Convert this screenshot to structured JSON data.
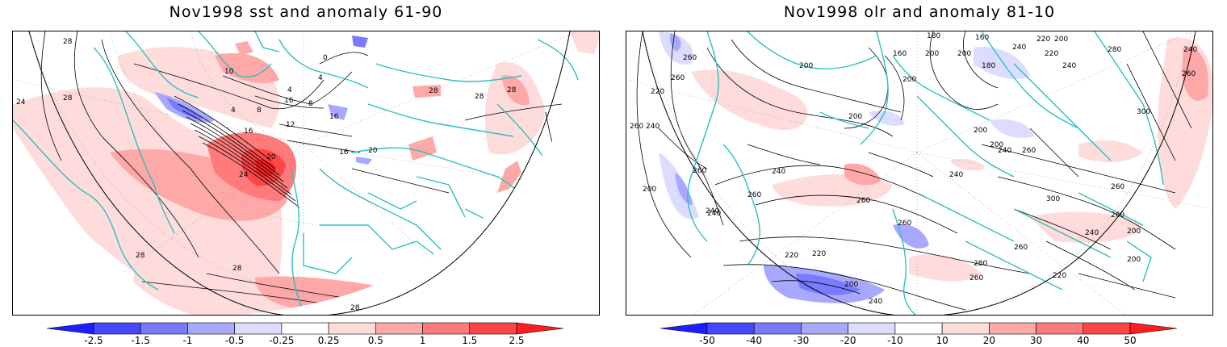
{
  "left_panel": {
    "title": "Nov1998 sst and anomaly 61-90",
    "contour_labels": [
      "28",
      "24",
      "28",
      "10",
      "4",
      "8",
      "4",
      "0",
      "4",
      "8",
      "12",
      "16",
      "20",
      "24",
      "16",
      "20",
      "16",
      "28",
      "28",
      "28",
      "28",
      "28",
      "28",
      "16"
    ],
    "colorbar": {
      "ticks": [
        "-2.5",
        "-1.5",
        "-1",
        "-0.5",
        "-0.25",
        "0.25",
        "0.5",
        "1",
        "1.5",
        "2.5"
      ],
      "colors": [
        "#1e1eff",
        "#4646ff",
        "#7a7aff",
        "#a8a8ff",
        "#dcdcff",
        "#ffffff",
        "#ffdcdc",
        "#ffa8a8",
        "#ff7a7a",
        "#ff4646",
        "#ff1e1e"
      ]
    }
  },
  "right_panel": {
    "title": "Nov1998 olr and anomaly 81-10",
    "contour_labels": [
      "180",
      "160",
      "220",
      "200",
      "240",
      "280",
      "240",
      "200",
      "160",
      "180",
      "220",
      "240",
      "260",
      "200",
      "260",
      "260",
      "200",
      "200",
      "220",
      "200",
      "300",
      "260",
      "240",
      "240",
      "260",
      "260",
      "260",
      "240",
      "200",
      "200",
      "240",
      "260",
      "300",
      "260",
      "260",
      "240",
      "200",
      "220",
      "280",
      "260",
      "220",
      "240",
      "200",
      "220",
      "260",
      "260",
      "240",
      "200",
      "240",
      "200"
    ],
    "colorbar": {
      "ticks": [
        "-50",
        "-40",
        "-30",
        "-20",
        "-10",
        "10",
        "20",
        "30",
        "40",
        "50"
      ],
      "colors": [
        "#1e1eff",
        "#4646ff",
        "#7a7aff",
        "#a8a8ff",
        "#dcdcff",
        "#ffffff",
        "#ffdcdc",
        "#ffa8a8",
        "#ff7a7a",
        "#ff4646",
        "#ff1e1e"
      ]
    }
  },
  "style": {
    "coast_color": "#2cc0c0",
    "contour_color": "#000000",
    "grid_color": "#888888"
  }
}
